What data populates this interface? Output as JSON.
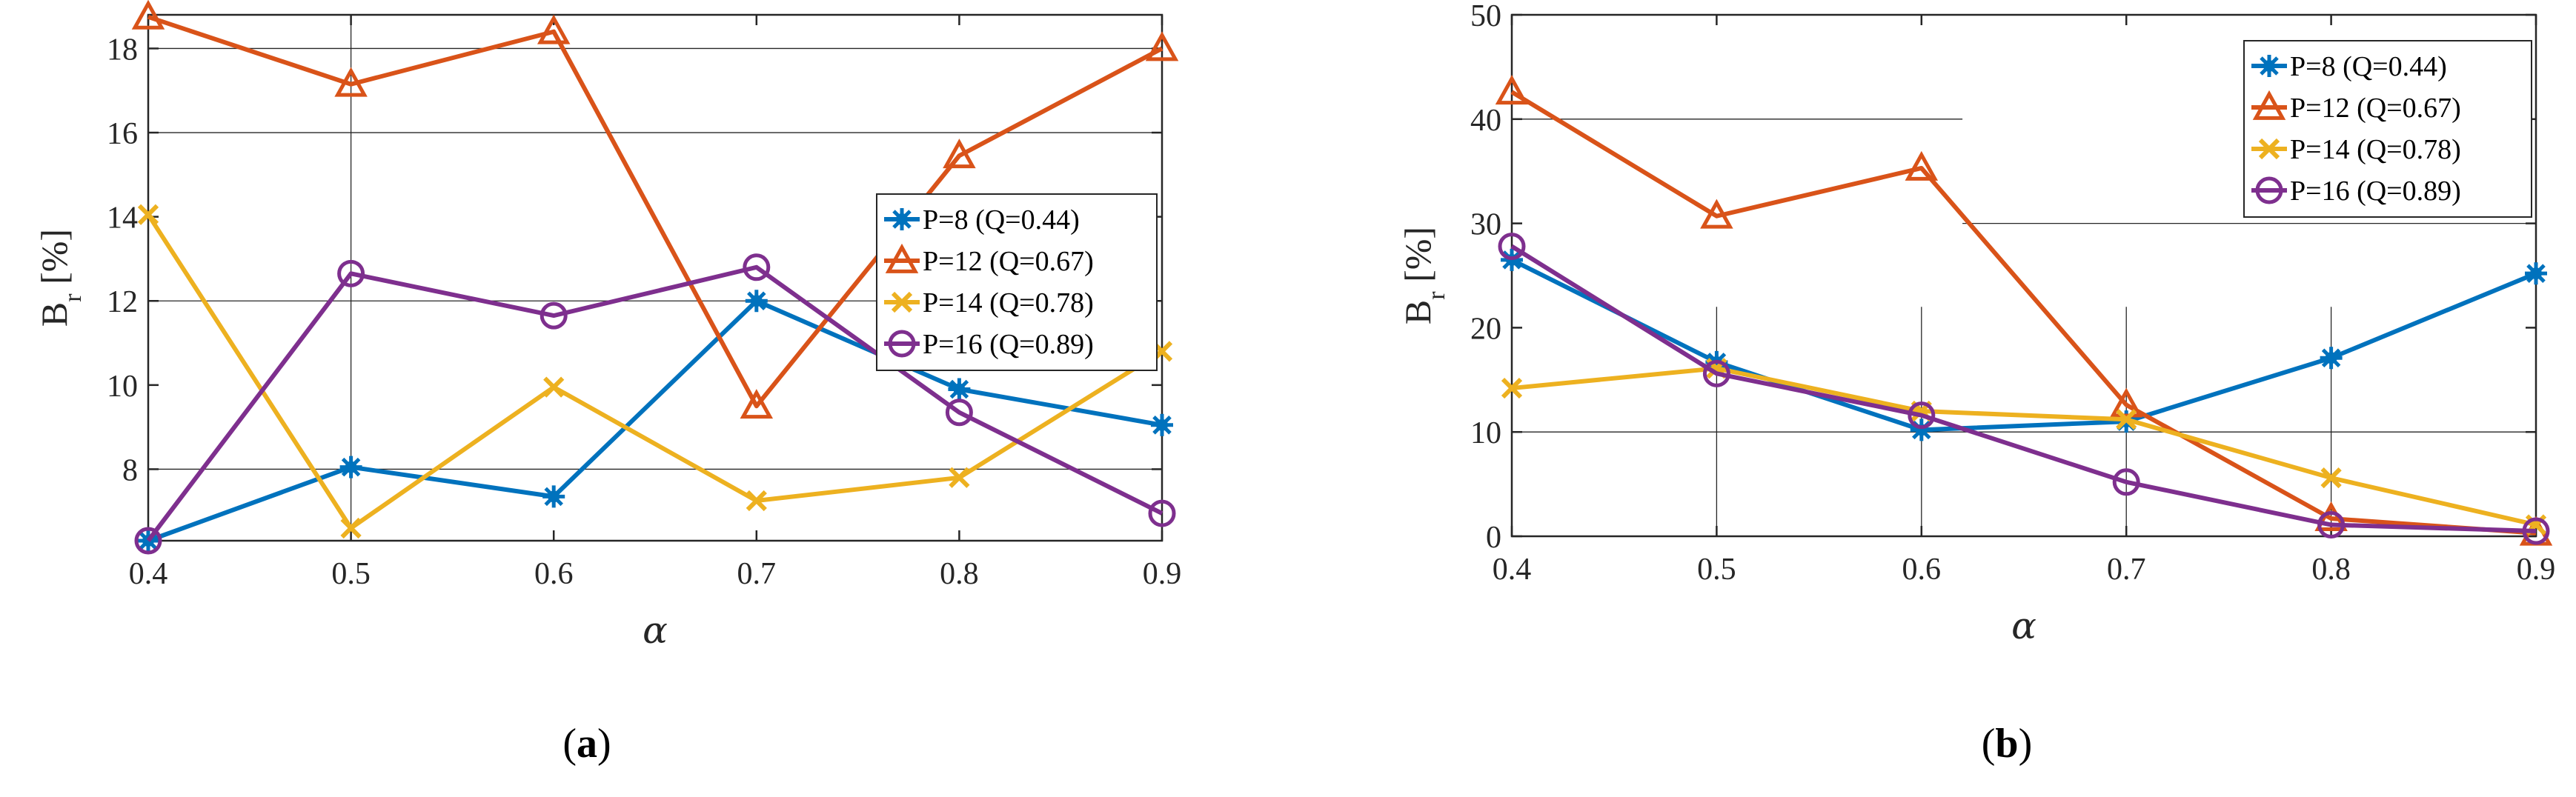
{
  "chart_data": [
    {
      "type": "line",
      "caption_letter": "a",
      "xlabel": "α",
      "ylabel": "B",
      "ylabel_sub": "r",
      "ylabel_unit": " [%]",
      "x": [
        0.4,
        0.5,
        0.6,
        0.7,
        0.8,
        0.9
      ],
      "xticks": [
        "0.4",
        "0.5",
        "0.6",
        "0.7",
        "0.8",
        "0.9"
      ],
      "xlim": [
        0.4,
        0.9
      ],
      "yticks": [
        "8",
        "10",
        "12",
        "14",
        "16",
        "18"
      ],
      "ytick_values": [
        8,
        10,
        12,
        14,
        16,
        18
      ],
      "ylim": [
        6.3,
        18.8
      ],
      "grid": "major, partially hidden",
      "legend_position": "right",
      "series": [
        {
          "name": "P=8 (Q=0.44)",
          "color": "#0072BD",
          "marker": "asterisk",
          "values": [
            6.3,
            8.05,
            7.35,
            12.0,
            9.9,
            9.05
          ]
        },
        {
          "name": "P=12 (Q=0.67)",
          "color": "#D95319",
          "marker": "triangle",
          "values": [
            18.75,
            17.15,
            18.4,
            9.5,
            15.45,
            18.0
          ]
        },
        {
          "name": "P=14 (Q=0.78)",
          "color": "#EDB120",
          "marker": "x",
          "values": [
            14.05,
            6.6,
            9.95,
            7.25,
            7.8,
            10.8
          ]
        },
        {
          "name": "P=16 (Q=0.89)",
          "color": "#7E2F8E",
          "marker": "circle",
          "values": [
            6.3,
            12.65,
            11.65,
            12.8,
            9.35,
            6.95
          ]
        }
      ]
    },
    {
      "type": "line",
      "caption_letter": "b",
      "xlabel": "α",
      "ylabel": "B",
      "ylabel_sub": "r",
      "ylabel_unit": " [%]",
      "x": [
        0.4,
        0.5,
        0.6,
        0.7,
        0.8,
        0.9
      ],
      "xticks": [
        "0.4",
        "0.5",
        "0.6",
        "0.7",
        "0.8",
        "0.9"
      ],
      "xlim": [
        0.4,
        0.9
      ],
      "yticks": [
        "0",
        "10",
        "20",
        "30",
        "40",
        "50"
      ],
      "ytick_values": [
        0,
        10,
        20,
        30,
        40,
        50
      ],
      "ylim": [
        0,
        50
      ],
      "grid": "major, partially hidden",
      "legend_position": "top-right",
      "series": [
        {
          "name": "P=8 (Q=0.44)",
          "color": "#0072BD",
          "marker": "asterisk",
          "values": [
            26.5,
            16.7,
            10.2,
            11.0,
            17.1,
            25.2
          ]
        },
        {
          "name": "P=12 (Q=0.67)",
          "color": "#D95319",
          "marker": "triangle",
          "values": [
            42.6,
            30.7,
            35.3,
            12.6,
            1.7,
            0.3
          ]
        },
        {
          "name": "P=14 (Q=0.78)",
          "color": "#EDB120",
          "marker": "x",
          "values": [
            14.2,
            16.1,
            12.0,
            11.2,
            5.6,
            1.1
          ]
        },
        {
          "name": "P=16 (Q=0.89)",
          "color": "#7E2F8E",
          "marker": "circle",
          "values": [
            27.8,
            15.6,
            11.6,
            5.2,
            1.1,
            0.5
          ]
        }
      ]
    }
  ]
}
